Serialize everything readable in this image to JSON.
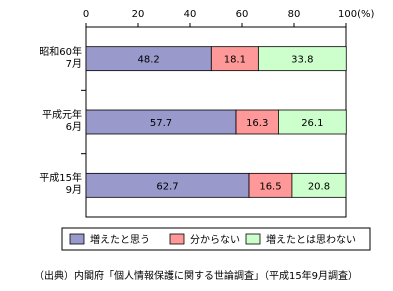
{
  "chart_data": {
    "type": "stacked-bar-horizontal",
    "categories": [
      "昭和60年\n7月",
      "平成元年\n6月",
      "平成15年\n9月"
    ],
    "series": [
      {
        "name": "増えたと思う",
        "color": "#9999cc",
        "values": [
          48.2,
          57.7,
          62.7
        ]
      },
      {
        "name": "分からない",
        "color": "#ff9999",
        "values": [
          18.1,
          16.3,
          16.5
        ]
      },
      {
        "name": "増えたとは思わない",
        "color": "#ccffcc",
        "values": [
          33.8,
          26.1,
          20.8
        ]
      }
    ],
    "xlim": [
      0,
      100
    ],
    "xticks": [
      0,
      20,
      40,
      60,
      80,
      {
        "value": 100,
        "label": "100(%)"
      }
    ],
    "source": "（出典）内閣府「個人情報保護に関する世論調査」（平成15年9月調査）"
  }
}
